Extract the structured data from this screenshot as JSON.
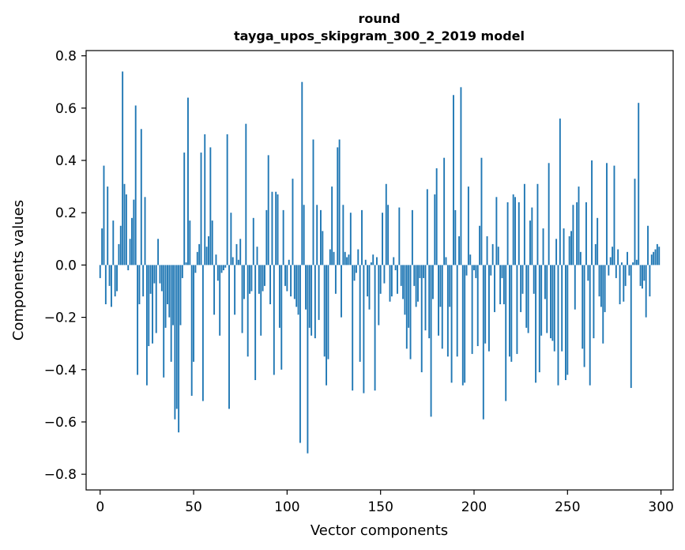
{
  "chart_data": {
    "type": "bar",
    "title": "round",
    "subtitle": "tayga_upos_skipgram_300_2_2019 model",
    "xlabel": "Vector components",
    "ylabel": "Components values",
    "xlim": [
      -7.5,
      306.5
    ],
    "ylim": [
      -0.86,
      0.82
    ],
    "xticks": [
      0,
      50,
      100,
      150,
      200,
      250,
      300
    ],
    "xtick_labels": [
      "0",
      "50",
      "100",
      "150",
      "200",
      "250",
      "300"
    ],
    "yticks": [
      -0.8,
      -0.6,
      -0.4,
      -0.2,
      0.0,
      0.2,
      0.4,
      0.6,
      0.8
    ],
    "ytick_labels": [
      "−0.8",
      "−0.6",
      "−0.4",
      "−0.2",
      "0.0",
      "0.2",
      "0.4",
      "0.6",
      "0.8"
    ],
    "bar_color": "#1f77b4",
    "series": [
      {
        "name": "round",
        "values": [
          -0.05,
          0.14,
          0.38,
          -0.15,
          0.3,
          -0.08,
          -0.16,
          0.17,
          -0.12,
          -0.1,
          0.08,
          0.15,
          0.74,
          0.31,
          0.27,
          -0.02,
          0.1,
          0.18,
          0.25,
          0.61,
          -0.42,
          -0.15,
          0.52,
          -0.12,
          0.26,
          -0.46,
          -0.31,
          -0.11,
          -0.3,
          -0.07,
          -0.26,
          0.1,
          -0.07,
          -0.1,
          -0.43,
          -0.24,
          -0.15,
          -0.2,
          -0.37,
          -0.23,
          -0.59,
          -0.55,
          -0.64,
          -0.23,
          -0.05,
          0.43,
          0.01,
          0.64,
          0.17,
          -0.5,
          -0.37,
          -0.03,
          0.05,
          0.08,
          0.43,
          -0.52,
          0.5,
          0.07,
          0.11,
          0.45,
          0.17,
          -0.19,
          0.04,
          -0.06,
          -0.27,
          -0.03,
          -0.02,
          -0.01,
          0.5,
          -0.55,
          0.2,
          0.03,
          -0.19,
          0.08,
          0.02,
          0.1,
          -0.26,
          -0.13,
          0.54,
          -0.35,
          -0.11,
          -0.1,
          0.18,
          -0.44,
          0.07,
          -0.11,
          -0.27,
          -0.1,
          -0.08,
          0.21,
          0.42,
          -0.15,
          0.28,
          -0.42,
          0.28,
          0.27,
          -0.24,
          -0.4,
          0.21,
          -0.08,
          -0.1,
          0.02,
          -0.12,
          0.33,
          -0.13,
          -0.16,
          -0.19,
          -0.68,
          0.7,
          0.23,
          -0.17,
          -0.72,
          -0.24,
          -0.27,
          0.48,
          -0.28,
          0.23,
          -0.21,
          0.21,
          0.13,
          -0.35,
          -0.46,
          -0.36,
          0.06,
          0.3,
          0.05,
          -0.11,
          0.45,
          0.48,
          -0.2,
          0.23,
          0.05,
          0.03,
          0.04,
          0.2,
          -0.48,
          -0.06,
          -0.03,
          0.06,
          -0.37,
          0.21,
          -0.49,
          0.02,
          -0.12,
          -0.17,
          0.01,
          0.04,
          -0.48,
          0.03,
          -0.23,
          -0.11,
          0.2,
          -0.07,
          0.31,
          0.23,
          -0.14,
          -0.12,
          0.03,
          -0.02,
          -0.11,
          0.22,
          -0.08,
          -0.13,
          -0.19,
          -0.32,
          -0.24,
          -0.36,
          0.21,
          -0.08,
          -0.16,
          -0.14,
          -0.05,
          -0.41,
          -0.05,
          -0.25,
          0.29,
          -0.28,
          -0.58,
          -0.13,
          0.27,
          0.37,
          -0.27,
          -0.16,
          -0.32,
          0.41,
          0.03,
          -0.35,
          -0.16,
          -0.45,
          0.65,
          0.21,
          -0.35,
          0.11,
          0.68,
          -0.46,
          -0.45,
          -0.04,
          0.3,
          0.04,
          -0.34,
          -0.02,
          -0.05,
          -0.31,
          0.15,
          0.41,
          -0.59,
          -0.3,
          0.11,
          -0.33,
          -0.04,
          0.08,
          -0.18,
          0.26,
          0.07,
          -0.15,
          -0.05,
          -0.15,
          -0.52,
          0.24,
          -0.35,
          -0.37,
          0.27,
          0.26,
          -0.34,
          0.24,
          -0.18,
          -0.11,
          0.31,
          -0.24,
          -0.26,
          0.17,
          0.22,
          -0.11,
          -0.45,
          0.31,
          -0.41,
          -0.27,
          0.14,
          -0.13,
          -0.26,
          0.39,
          -0.28,
          -0.29,
          -0.33,
          0.1,
          -0.46,
          0.56,
          -0.33,
          0.14,
          -0.44,
          -0.42,
          0.11,
          0.13,
          0.23,
          -0.17,
          0.24,
          0.3,
          0.05,
          -0.32,
          -0.39,
          0.24,
          -0.06,
          -0.46,
          0.4,
          -0.28,
          0.08,
          0.18,
          -0.12,
          -0.16,
          -0.3,
          -0.18,
          0.39,
          -0.04,
          0.03,
          0.07,
          0.38,
          -0.05,
          0.06,
          -0.15,
          0.01,
          -0.14,
          -0.08,
          0.05,
          -0.04,
          -0.47,
          0.01,
          0.33,
          0.02,
          0.62,
          -0.08,
          -0.09,
          -0.06,
          -0.2,
          0.15,
          -0.12,
          0.04,
          0.05,
          0.06,
          0.08,
          0.07
        ]
      }
    ]
  }
}
